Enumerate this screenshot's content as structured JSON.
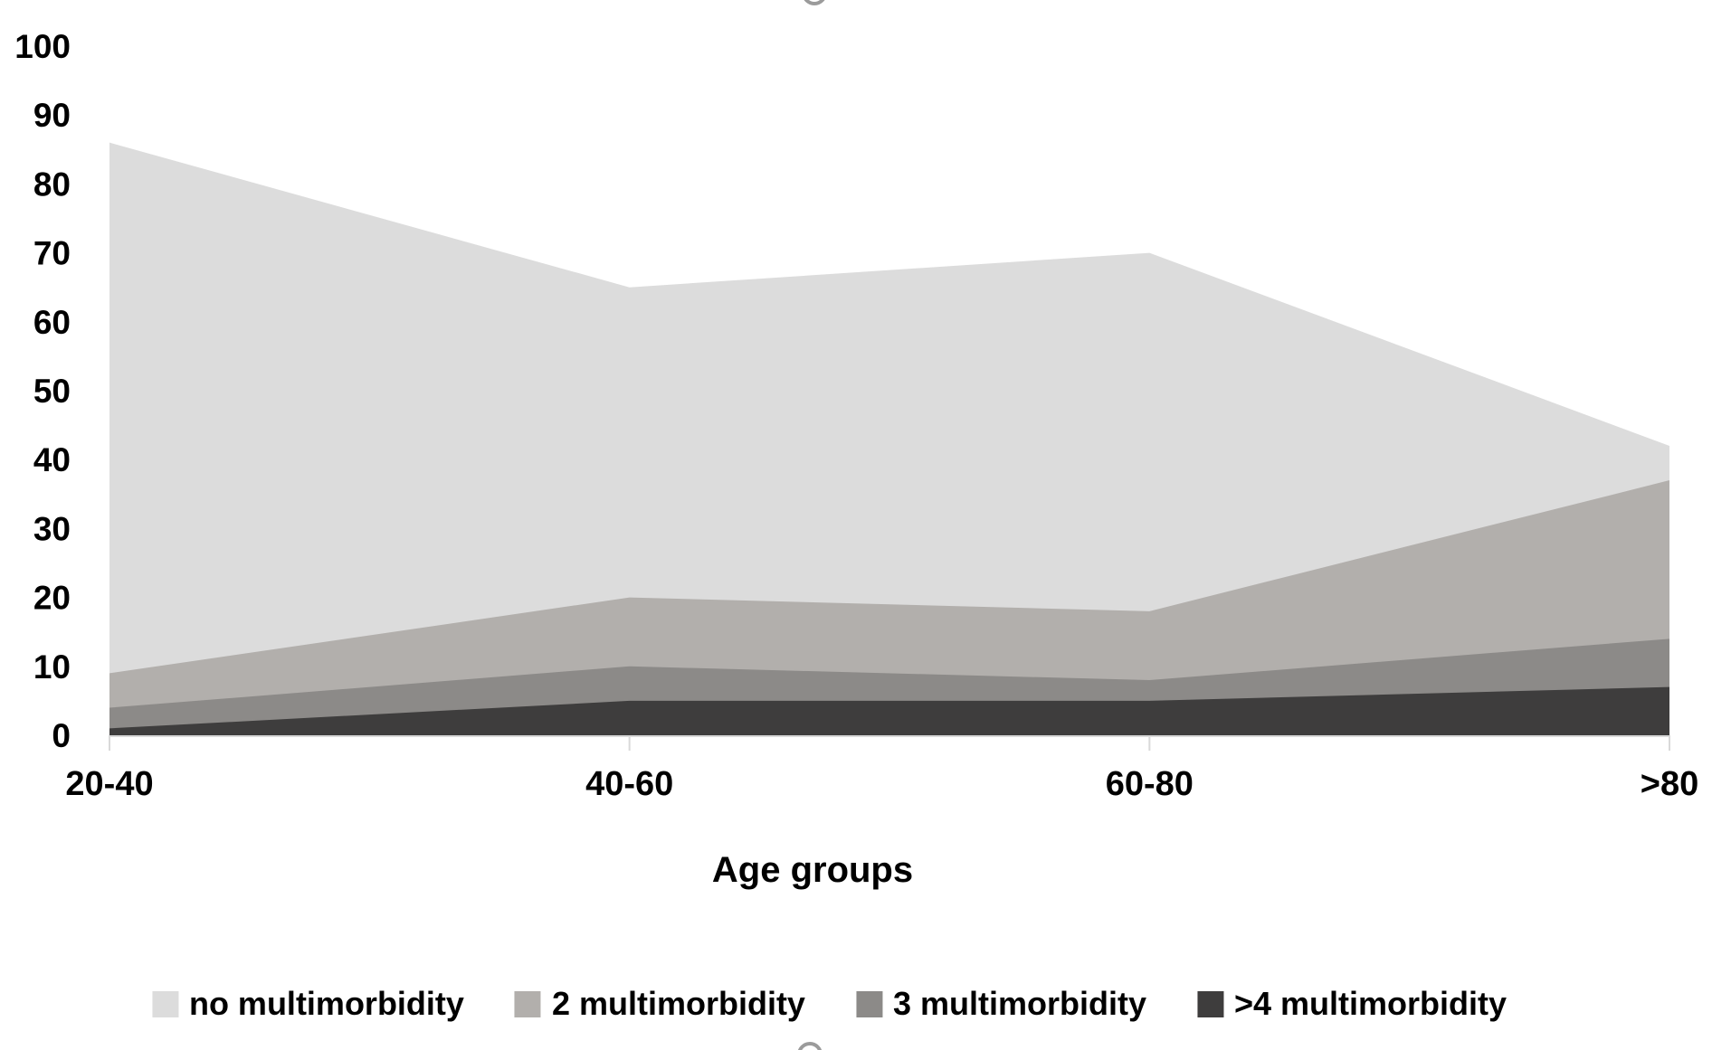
{
  "chart_data": {
    "type": "area",
    "mode": "overlapping",
    "title": "",
    "xlabel": "Age groups",
    "ylabel": "",
    "categories": [
      "20-40",
      "40-60",
      "60-80",
      ">80"
    ],
    "series": [
      {
        "name": "no multimorbidity",
        "values": [
          86,
          65,
          70,
          42
        ],
        "color": "#dcdcdc"
      },
      {
        "name": "2 multimorbidity",
        "values": [
          9,
          20,
          18,
          37
        ],
        "color": "#b2afac"
      },
      {
        "name": "3 multimorbidity",
        "values": [
          4,
          10,
          8,
          14
        ],
        "color": "#8c8a88"
      },
      {
        "name": ">4 multimorbidity",
        "values": [
          1,
          5,
          5,
          7
        ],
        "color": "#3e3d3d"
      }
    ],
    "ylim": [
      0,
      100
    ],
    "yticks": [
      "0",
      "10",
      "20",
      "30",
      "40",
      "50",
      "60",
      "70",
      "80",
      "90",
      "100"
    ],
    "grid": false,
    "legend_position": "bottom",
    "axis_tick_color": "#d9d9d9",
    "text_color": "#000000"
  }
}
